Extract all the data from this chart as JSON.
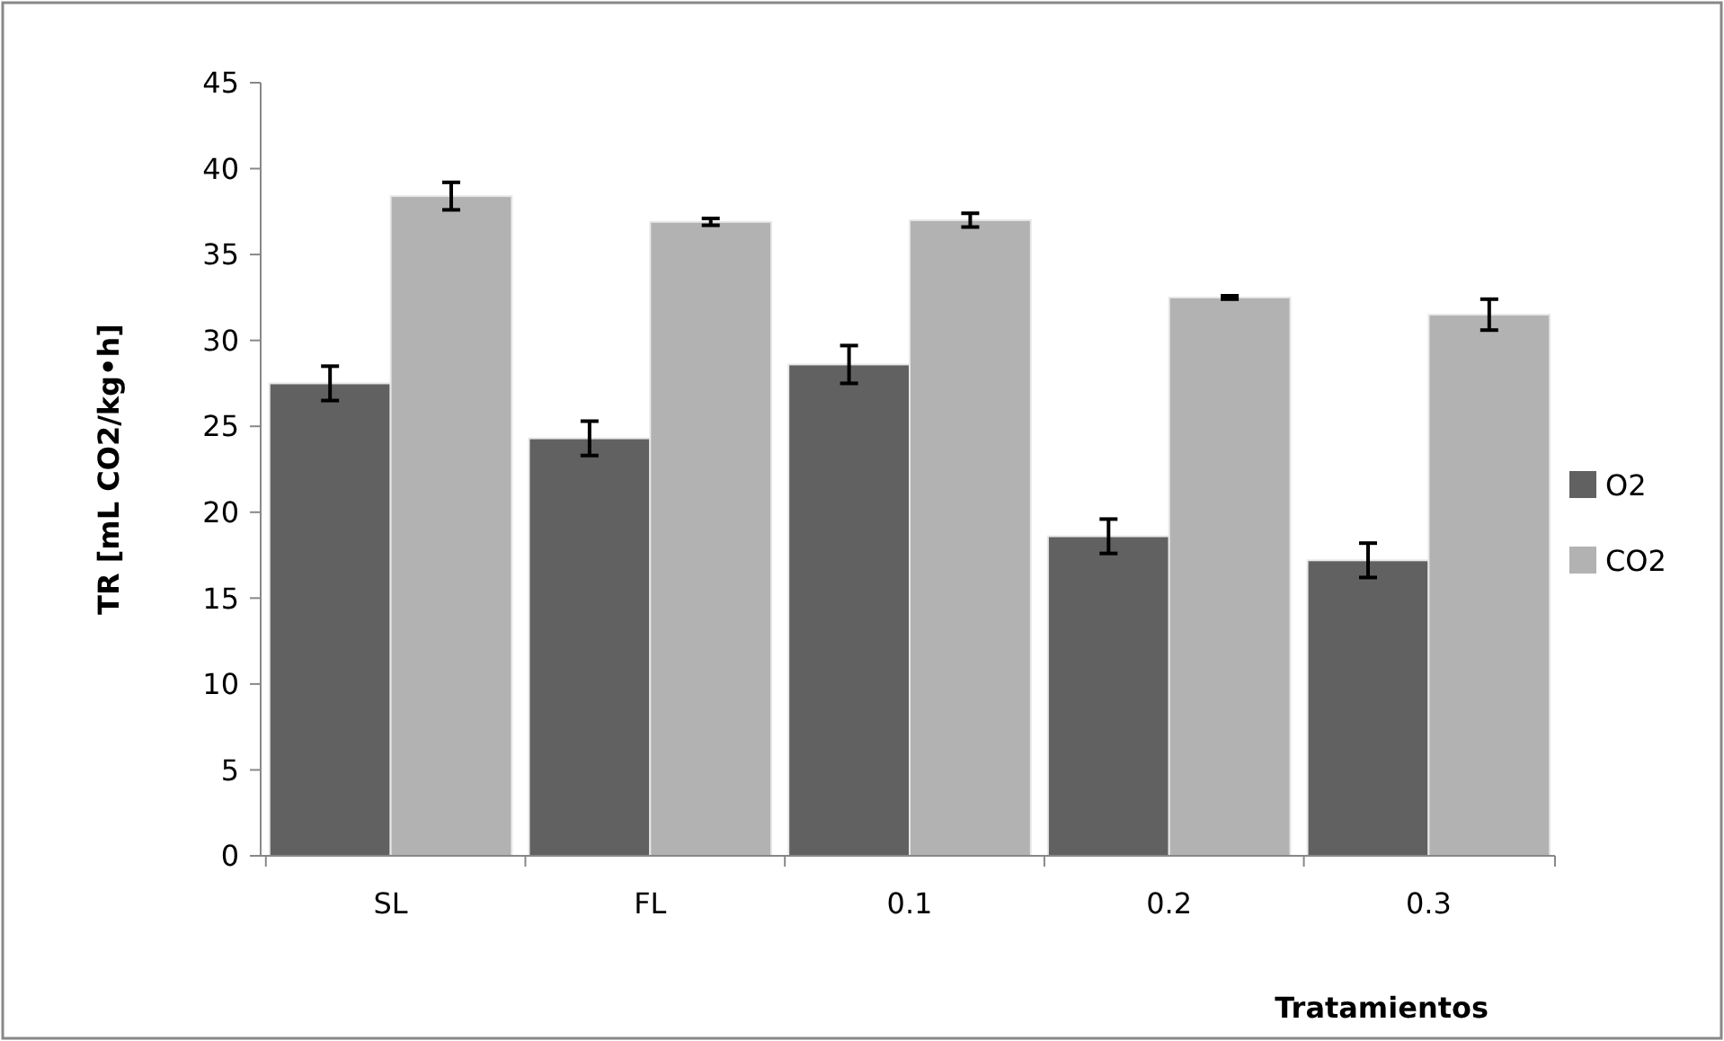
{
  "chart_data": {
    "type": "bar",
    "xlabel": "Tratamientos",
    "ylabel": "TR [mL CO2/kg•h]",
    "categories": [
      "SL",
      "FL",
      "0.1",
      "0.2",
      "0.3"
    ],
    "series": [
      {
        "name": "O2",
        "color": "#616161",
        "values": [
          27.5,
          24.3,
          28.6,
          18.6,
          17.2
        ],
        "errors": [
          1.0,
          1.0,
          1.1,
          1.0,
          1.0
        ]
      },
      {
        "name": "CO2",
        "color": "#b2b2b2",
        "values": [
          38.4,
          36.9,
          37.0,
          32.5,
          31.5
        ],
        "errors": [
          0.8,
          0.2,
          0.4,
          0.1,
          0.9
        ]
      }
    ],
    "ylim": [
      0,
      45
    ],
    "yticks": [
      0,
      5,
      10,
      15,
      20,
      25,
      30,
      35,
      40,
      45
    ],
    "grid": false,
    "legend": "right"
  }
}
